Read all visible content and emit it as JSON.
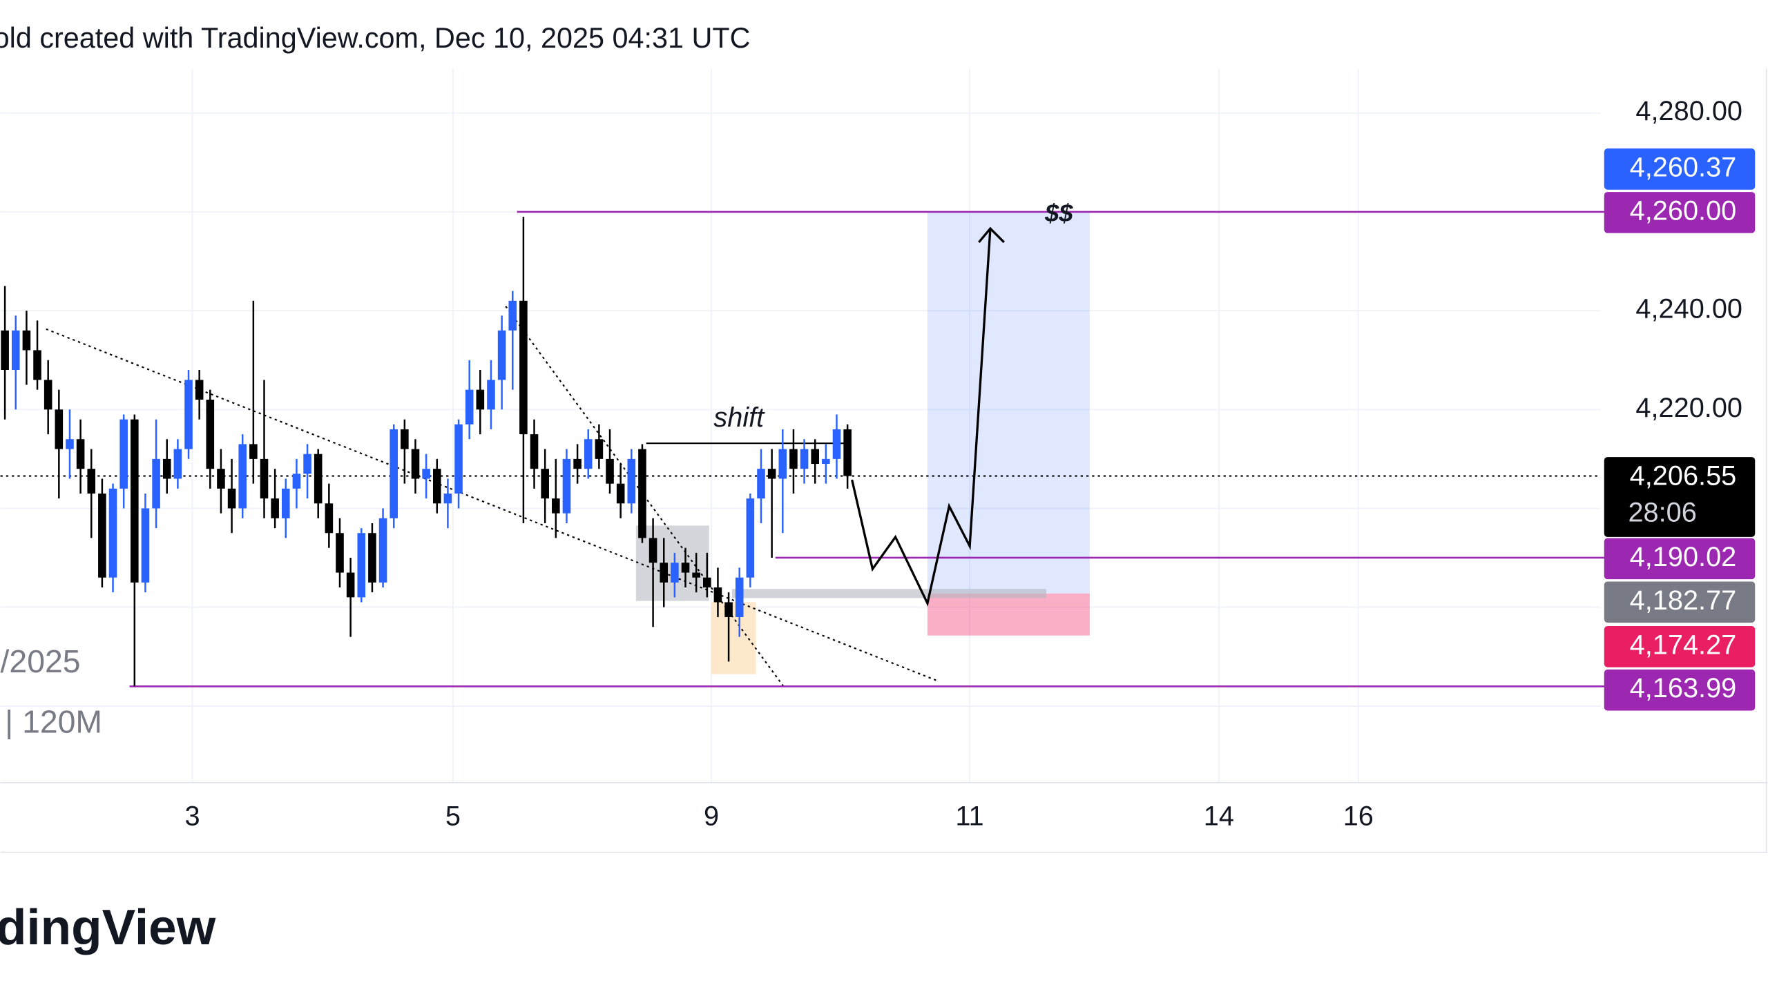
{
  "chart_data": {
    "type": "candlestick",
    "header": "old created with TradingView.com, Dec 10, 2025 04:31 UTC",
    "legend_date": "/2025",
    "legend_interval": "| 120M",
    "footer": "dingView",
    "annotations": {
      "shift": "shift",
      "target": "$$"
    },
    "up_color": "#2962ff",
    "down_color": "#000000",
    "open": [
      4236,
      4228,
      4236,
      4232,
      4226,
      4220,
      4212,
      4214,
      4208,
      4203,
      4186,
      4204,
      4218,
      4185,
      4200,
      4210,
      4206,
      4212,
      4226,
      4222,
      4208,
      4204,
      4200,
      4213,
      4210,
      4202,
      4198,
      4204,
      4207,
      4211,
      4201,
      4195,
      4187,
      4182,
      4195,
      4185,
      4198,
      4216,
      4212,
      4206,
      4208,
      4201,
      4203,
      4217,
      4224,
      4220,
      4226,
      4236,
      4242,
      4215,
      4208,
      4202,
      4199,
      4210,
      4208,
      4214,
      4210,
      4205,
      4201,
      4212,
      4194,
      4189,
      4185,
      4189,
      4187,
      4186,
      4184,
      4181,
      4178,
      4186,
      4202,
      4208,
      4206,
      4212,
      4208,
      4212,
      4209,
      4210,
      4216
    ],
    "high": [
      4245,
      4239,
      4240,
      4238,
      4230,
      4224,
      4220,
      4218,
      4212,
      4206,
      4205,
      4219,
      4219,
      4203,
      4218,
      4214,
      4214,
      4228,
      4228,
      4224,
      4212,
      4210,
      4215,
      4242,
      4226,
      4208,
      4206,
      4210,
      4213,
      4212,
      4205,
      4198,
      4190,
      4196,
      4197,
      4200,
      4217,
      4218,
      4214,
      4211,
      4210,
      4206,
      4218,
      4230,
      4228,
      4230,
      4239,
      4244,
      4259,
      4218,
      4212,
      4210,
      4212,
      4213,
      4216,
      4217,
      4216,
      4209,
      4212,
      4213,
      4198,
      4194,
      4191,
      4192,
      4191,
      4191,
      4188,
      4183,
      4188,
      4203,
      4212,
      4212,
      4216,
      4216,
      4214,
      4214,
      4213,
      4219,
      4217
    ],
    "low": [
      4218,
      4220,
      4225,
      4224,
      4215,
      4202,
      4206,
      4203,
      4194,
      4184,
      4183,
      4200,
      4164,
      4183,
      4196,
      4203,
      4204,
      4210,
      4218,
      4204,
      4199,
      4195,
      4198,
      4205,
      4198,
      4196,
      4194,
      4200,
      4202,
      4198,
      4192,
      4184,
      4174,
      4181,
      4183,
      4184,
      4196,
      4205,
      4203,
      4202,
      4199,
      4196,
      4200,
      4214,
      4215,
      4216,
      4220,
      4224,
      4197,
      4204,
      4197,
      4194,
      4197,
      4205,
      4206,
      4208,
      4203,
      4198,
      4199,
      4193,
      4176,
      4180,
      4182,
      4184,
      4183,
      4182,
      4178,
      4169,
      4174,
      4184,
      4197,
      4190,
      4195,
      4203,
      4205,
      4205,
      4205,
      4206,
      4204
    ],
    "close": [
      4228,
      4236,
      4232,
      4226,
      4220,
      4212,
      4214,
      4208,
      4203,
      4186,
      4204,
      4218,
      4185,
      4200,
      4210,
      4206,
      4212,
      4226,
      4222,
      4208,
      4204,
      4200,
      4213,
      4210,
      4202,
      4198,
      4204,
      4207,
      4211,
      4201,
      4195,
      4187,
      4182,
      4195,
      4185,
      4198,
      4216,
      4212,
      4206,
      4208,
      4201,
      4203,
      4217,
      4224,
      4220,
      4226,
      4236,
      4242,
      4215,
      4208,
      4202,
      4199,
      4210,
      4208,
      4214,
      4210,
      4205,
      4201,
      4210,
      4194,
      4189,
      4185,
      4189,
      4187,
      4186,
      4184,
      4181,
      4178,
      4186,
      4202,
      4208,
      4206,
      4212,
      4208,
      4212,
      4209,
      4210,
      4216,
      4206.55
    ],
    "xlim": [
      -0.42,
      147.73
    ],
    "xticks": [
      {
        "value": 17.35,
        "label": "3"
      },
      {
        "value": 41.48,
        "label": "5"
      },
      {
        "value": 65.4,
        "label": "9"
      },
      {
        "value": 89.31,
        "label": "11"
      },
      {
        "value": 112.38,
        "label": "14"
      },
      {
        "value": 125.29,
        "label": "16"
      }
    ],
    "ylim": [
      4144.5,
      4289
    ],
    "yticks": [
      {
        "value": 4280,
        "label": "4,280.00"
      },
      {
        "value": 4240,
        "label": "4,240.00"
      },
      {
        "value": 4220,
        "label": "4,220.00"
      }
    ],
    "ygrid": [
      4280,
      4260,
      4240,
      4220,
      4200,
      4180,
      4160
    ],
    "grid": true,
    "levels": [
      {
        "value": 4260.37,
        "label": "4,260.37",
        "color": "#2962ff"
      },
      {
        "value": 4260,
        "label": "4,260.00",
        "color": "#9c27b0"
      },
      {
        "value": 4206.55,
        "label": "4,206.55",
        "color": "#000000",
        "countdown": "28:06"
      },
      {
        "value": 4190.02,
        "label": "4,190.02",
        "color": "#9c27b0"
      },
      {
        "value": 4182.77,
        "label": "4,182.77",
        "color": "#787b86"
      },
      {
        "value": 4174.27,
        "label": "4,174.27",
        "color": "#e91e63"
      },
      {
        "value": 4163.99,
        "label": "4,163.99",
        "color": "#9c27b0"
      }
    ]
  }
}
